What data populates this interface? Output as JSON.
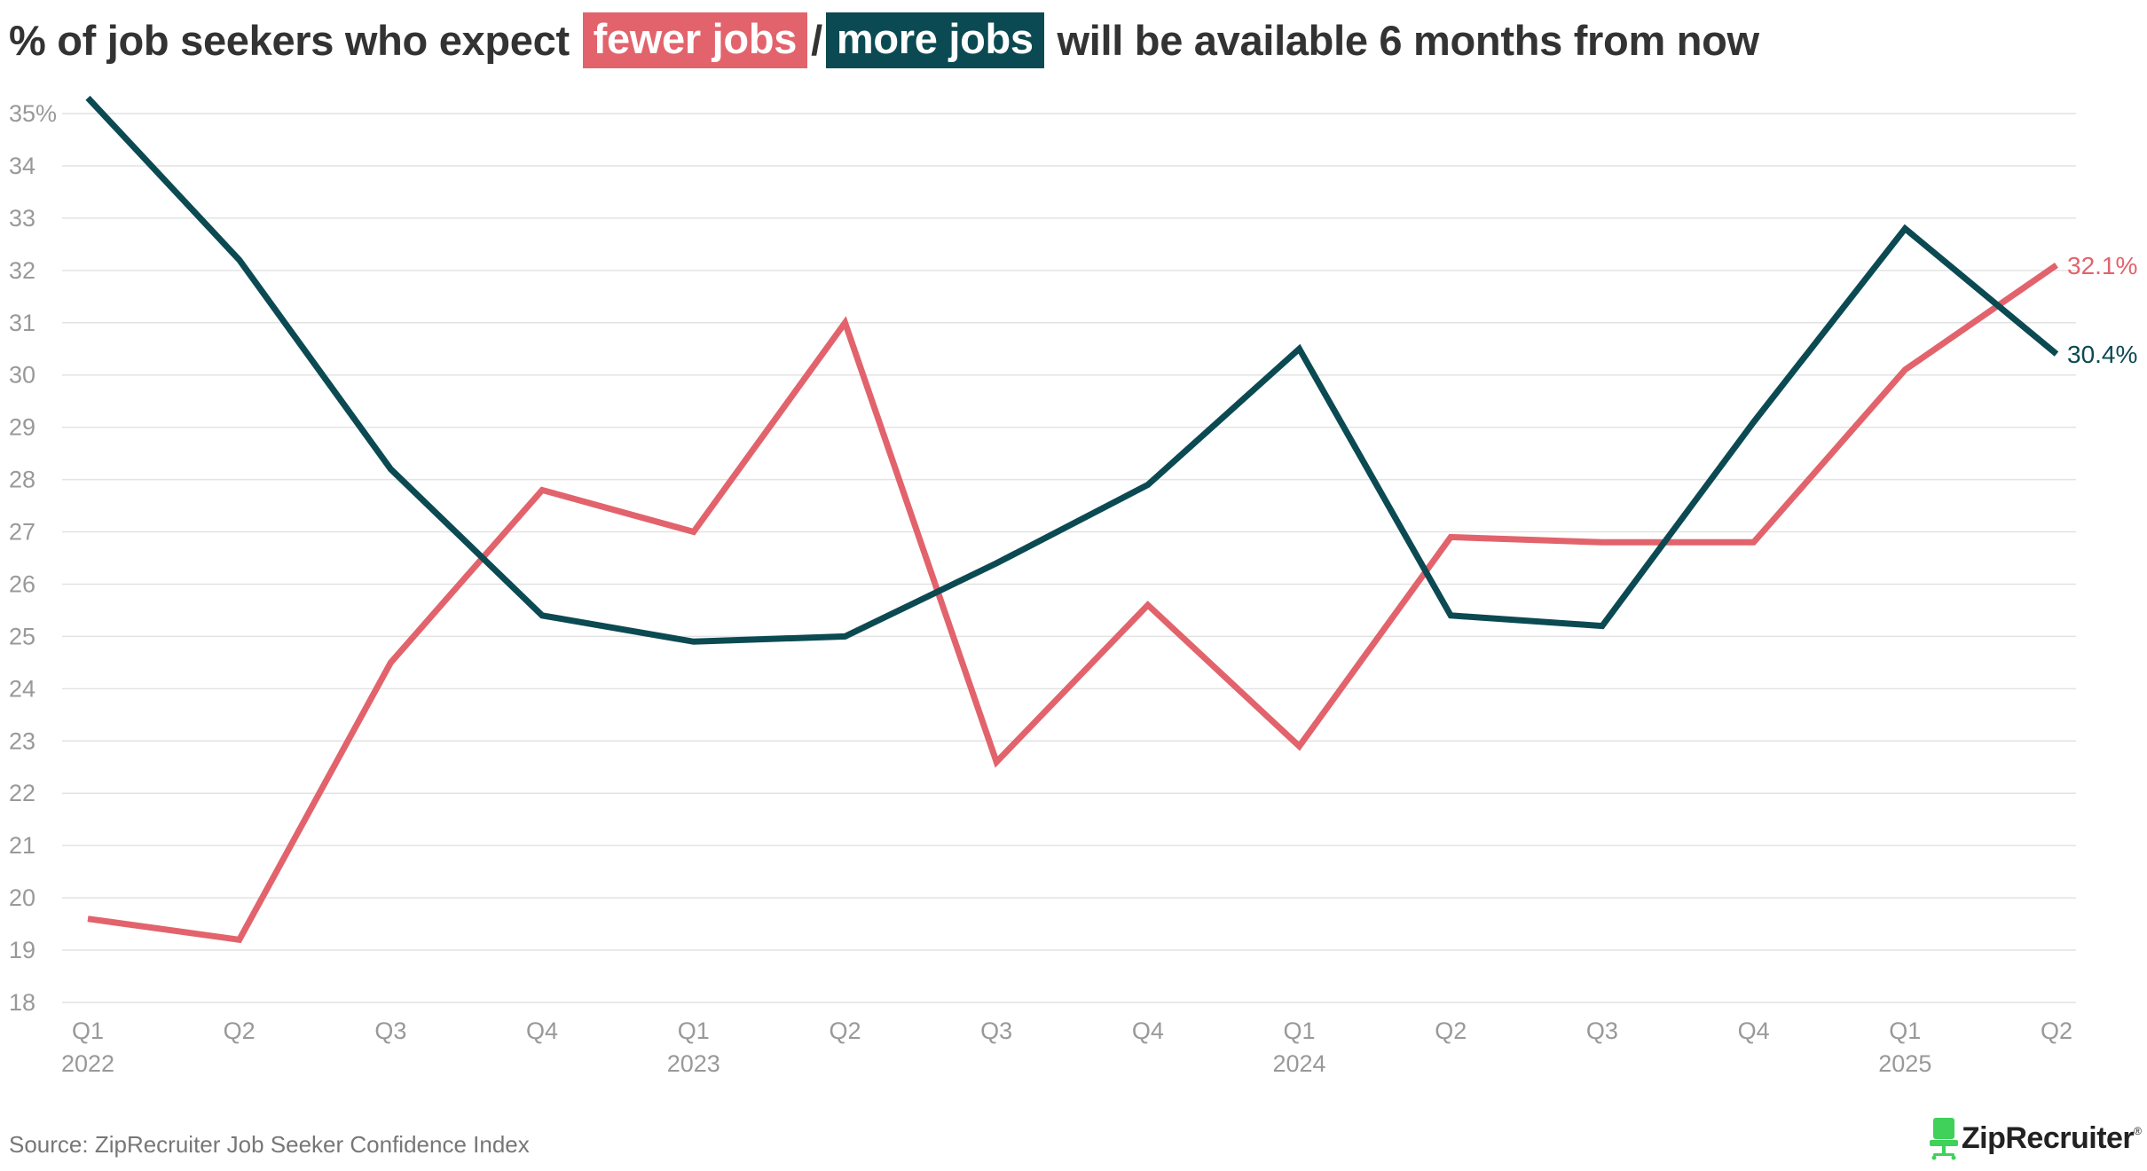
{
  "title": {
    "prefix": "% of job seekers who expect",
    "hl_fewer": "fewer jobs",
    "separator": "/",
    "hl_more": "more jobs",
    "suffix": "will be available 6 months from now"
  },
  "colors": {
    "fewer": "#e2636c",
    "more": "#0b4a52",
    "grid": "#e3e3e3",
    "tick": "#999999",
    "text": "#333333",
    "logo_icon": "#3fd15a"
  },
  "source": "Source: ZipRecruiter Job Seeker Confidence Index",
  "logo": {
    "text": "ZipRecruiter",
    "reg": "®",
    "icon": "chair-icon"
  },
  "chart_data": {
    "type": "line",
    "x": [
      "Q1",
      "Q2",
      "Q3",
      "Q4",
      "Q1",
      "Q2",
      "Q3",
      "Q4",
      "Q1",
      "Q2",
      "Q3",
      "Q4",
      "Q1",
      "Q2"
    ],
    "year_labels": [
      {
        "index": 0,
        "label": "2022"
      },
      {
        "index": 4,
        "label": "2023"
      },
      {
        "index": 8,
        "label": "2024"
      },
      {
        "index": 12,
        "label": "2025"
      }
    ],
    "ylim": [
      18,
      35
    ],
    "yticks": [
      18,
      19,
      20,
      21,
      22,
      23,
      24,
      25,
      26,
      27,
      28,
      29,
      30,
      31,
      32,
      33,
      34,
      35
    ],
    "ytick_labels": [
      "18",
      "19",
      "20",
      "21",
      "22",
      "23",
      "24",
      "25",
      "26",
      "27",
      "28",
      "29",
      "30",
      "31",
      "32",
      "33",
      "34",
      "35%"
    ],
    "grid": true,
    "series": [
      {
        "name": "fewer jobs",
        "color": "#e2636c",
        "values": [
          19.6,
          19.2,
          24.5,
          27.8,
          27.0,
          31.0,
          22.6,
          25.6,
          22.9,
          26.9,
          26.8,
          26.8,
          30.1,
          32.1
        ],
        "end_label": "32.1%"
      },
      {
        "name": "more jobs",
        "color": "#0b4a52",
        "values": [
          35.3,
          32.2,
          28.2,
          25.4,
          24.9,
          25.0,
          26.4,
          27.9,
          30.5,
          25.4,
          25.2,
          29.1,
          32.8,
          30.4
        ],
        "end_label": "30.4%"
      }
    ]
  }
}
